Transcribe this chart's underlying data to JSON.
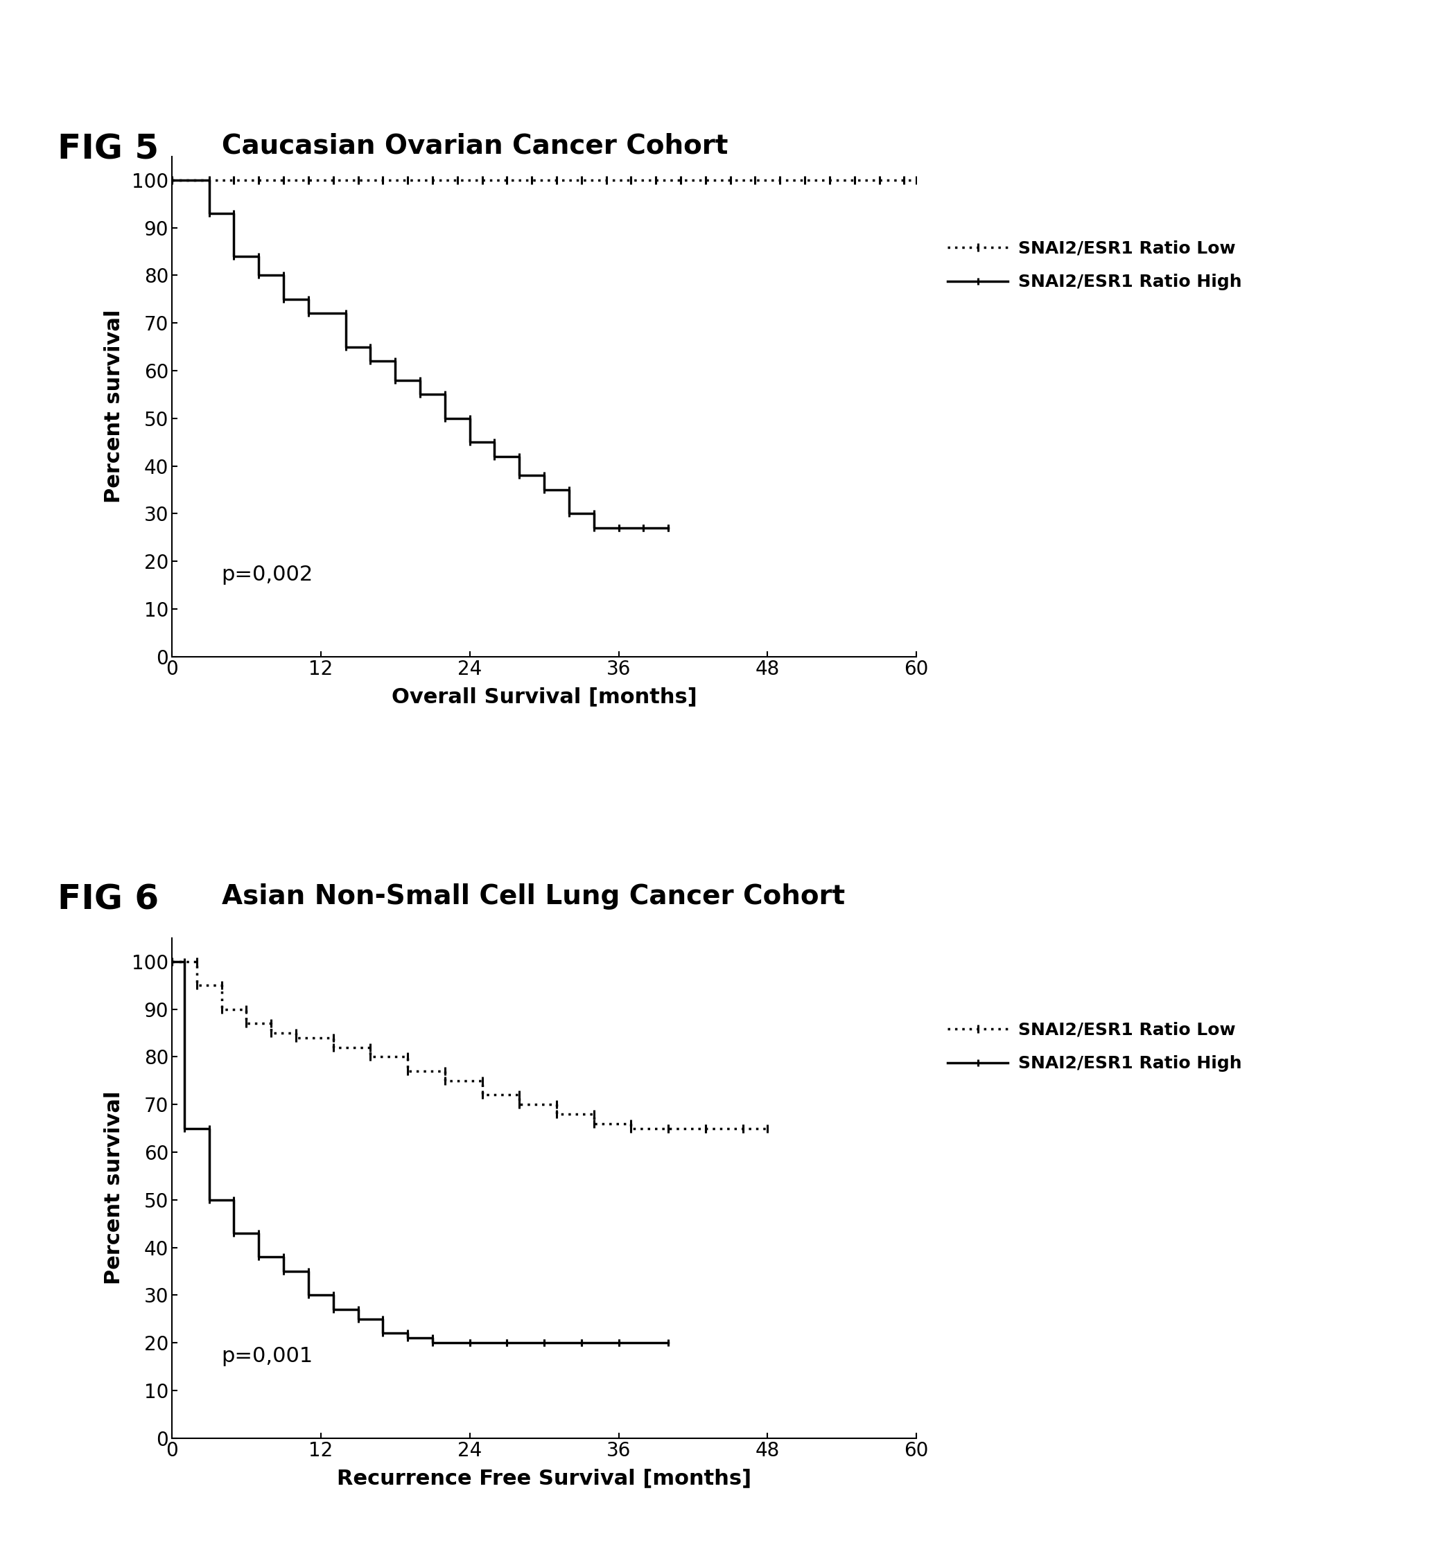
{
  "fig5": {
    "title_fig": "FIG 5",
    "title_cohort": "Caucasian Ovarian Cancer Cohort",
    "xlabel": "Overall Survival [months]",
    "ylabel": "Percent survival",
    "pvalue": "p=0,002",
    "xlim": [
      0,
      60
    ],
    "ylim": [
      0,
      105
    ],
    "xticks": [
      0,
      12,
      24,
      36,
      48,
      60
    ],
    "yticks": [
      0,
      10,
      20,
      30,
      40,
      50,
      60,
      70,
      80,
      90,
      100
    ],
    "low_x": [
      0,
      3,
      5,
      7,
      9,
      11,
      13,
      15,
      17,
      19,
      21,
      23,
      25,
      27,
      29,
      31,
      33,
      35,
      37,
      39,
      41,
      43,
      45,
      47,
      49,
      51,
      53,
      55,
      57,
      59,
      60
    ],
    "low_y": [
      100,
      100,
      100,
      100,
      100,
      100,
      100,
      100,
      100,
      100,
      100,
      100,
      100,
      100,
      100,
      100,
      100,
      100,
      100,
      100,
      100,
      100,
      100,
      100,
      100,
      100,
      100,
      100,
      100,
      100,
      100
    ],
    "high_x": [
      0,
      3,
      3,
      5,
      5,
      7,
      7,
      9,
      9,
      11,
      11,
      14,
      14,
      16,
      16,
      18,
      18,
      20,
      20,
      22,
      22,
      24,
      24,
      26,
      26,
      28,
      28,
      30,
      30,
      32,
      32,
      34,
      34,
      36,
      36,
      38,
      38,
      40,
      40
    ],
    "high_y": [
      100,
      100,
      93,
      93,
      84,
      84,
      80,
      80,
      75,
      75,
      72,
      72,
      65,
      65,
      62,
      62,
      58,
      58,
      55,
      55,
      50,
      50,
      45,
      45,
      42,
      42,
      38,
      38,
      35,
      35,
      30,
      30,
      27,
      27,
      27,
      27,
      27,
      27,
      27
    ]
  },
  "fig6": {
    "title_fig": "FIG 6",
    "title_cohort": "Asian Non-Small Cell Lung Cancer Cohort",
    "xlabel": "Recurrence Free Survival [months]",
    "ylabel": "Percent survival",
    "pvalue": "p=0,001",
    "xlim": [
      0,
      60
    ],
    "ylim": [
      0,
      105
    ],
    "xticks": [
      0,
      12,
      24,
      36,
      48,
      60
    ],
    "yticks": [
      0,
      10,
      20,
      30,
      40,
      50,
      60,
      70,
      80,
      90,
      100
    ],
    "low_x": [
      0,
      2,
      2,
      4,
      4,
      6,
      6,
      8,
      8,
      10,
      10,
      13,
      13,
      16,
      16,
      19,
      19,
      22,
      22,
      25,
      25,
      28,
      28,
      31,
      31,
      34,
      34,
      37,
      37,
      40,
      40,
      43,
      43,
      46,
      46,
      48
    ],
    "low_y": [
      100,
      100,
      95,
      95,
      90,
      90,
      87,
      87,
      85,
      85,
      84,
      84,
      82,
      82,
      80,
      80,
      77,
      77,
      75,
      75,
      72,
      72,
      70,
      70,
      68,
      68,
      66,
      66,
      65,
      65,
      65,
      65,
      65,
      65,
      65,
      65
    ],
    "high_x": [
      0,
      1,
      1,
      3,
      3,
      5,
      5,
      7,
      7,
      9,
      9,
      11,
      11,
      13,
      13,
      15,
      15,
      17,
      17,
      19,
      19,
      21,
      21,
      24,
      24,
      27,
      27,
      30,
      30,
      33,
      33,
      36,
      36,
      40
    ],
    "high_y": [
      100,
      100,
      65,
      65,
      50,
      50,
      43,
      43,
      38,
      38,
      35,
      35,
      30,
      30,
      27,
      27,
      25,
      25,
      22,
      22,
      21,
      21,
      20,
      20,
      20,
      20,
      20,
      20,
      20,
      20,
      20,
      20,
      20,
      20
    ]
  },
  "legend_low_label": "SNAI2/ESR1 Ratio Low",
  "legend_high_label": "SNAI2/ESR1 Ratio High",
  "line_color": "#000000",
  "bg_color": "#ffffff",
  "fontsize_title_fig": 36,
  "fontsize_title_cohort": 28,
  "fontsize_axis_label": 22,
  "fontsize_tick": 20,
  "fontsize_pvalue": 22,
  "fontsize_legend": 18,
  "linewidth": 2.5
}
